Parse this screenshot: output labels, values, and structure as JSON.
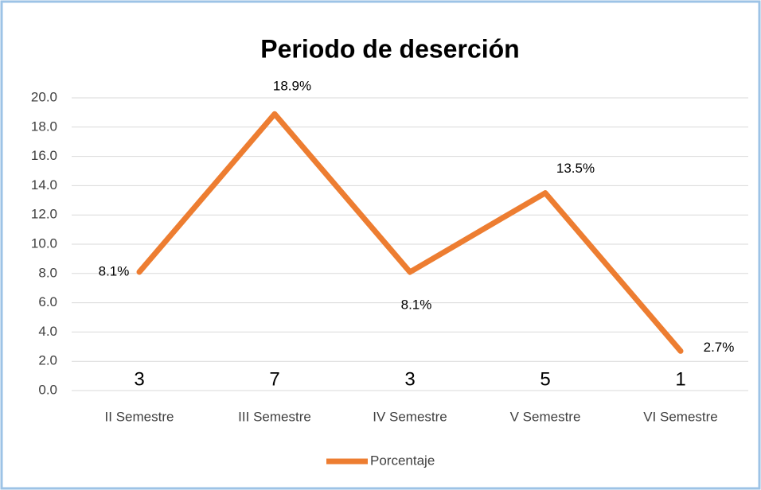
{
  "chart_data": {
    "type": "line",
    "title": "Periodo de deserción",
    "categories": [
      "II Semestre",
      "III Semestre",
      "IV Semestre",
      "V Semestre",
      "VI Semestre"
    ],
    "series": [
      {
        "name": "Porcentaje",
        "color": "#ed7d31",
        "values": [
          8.1,
          18.9,
          8.1,
          13.5,
          2.7
        ],
        "value_labels": [
          "8.1%",
          "18.9%",
          "8.1%",
          "13.5%",
          "2.7%"
        ]
      }
    ],
    "counts": [
      3,
      7,
      3,
      5,
      1
    ],
    "ylim": [
      0,
      20
    ],
    "yticks": [
      {
        "value": 0,
        "label": "0.0"
      },
      {
        "value": 2,
        "label": "2.0"
      },
      {
        "value": 4,
        "label": "4.0"
      },
      {
        "value": 6,
        "label": "6.0"
      },
      {
        "value": 8,
        "label": "8.0"
      },
      {
        "value": 10,
        "label": "10.0"
      },
      {
        "value": 12,
        "label": "12.0"
      },
      {
        "value": 14,
        "label": "14.0"
      },
      {
        "value": 16,
        "label": "16.0"
      },
      {
        "value": 18,
        "label": "18.0"
      },
      {
        "value": 20,
        "label": "20.0"
      }
    ],
    "grid": true,
    "legend": "bottom"
  }
}
